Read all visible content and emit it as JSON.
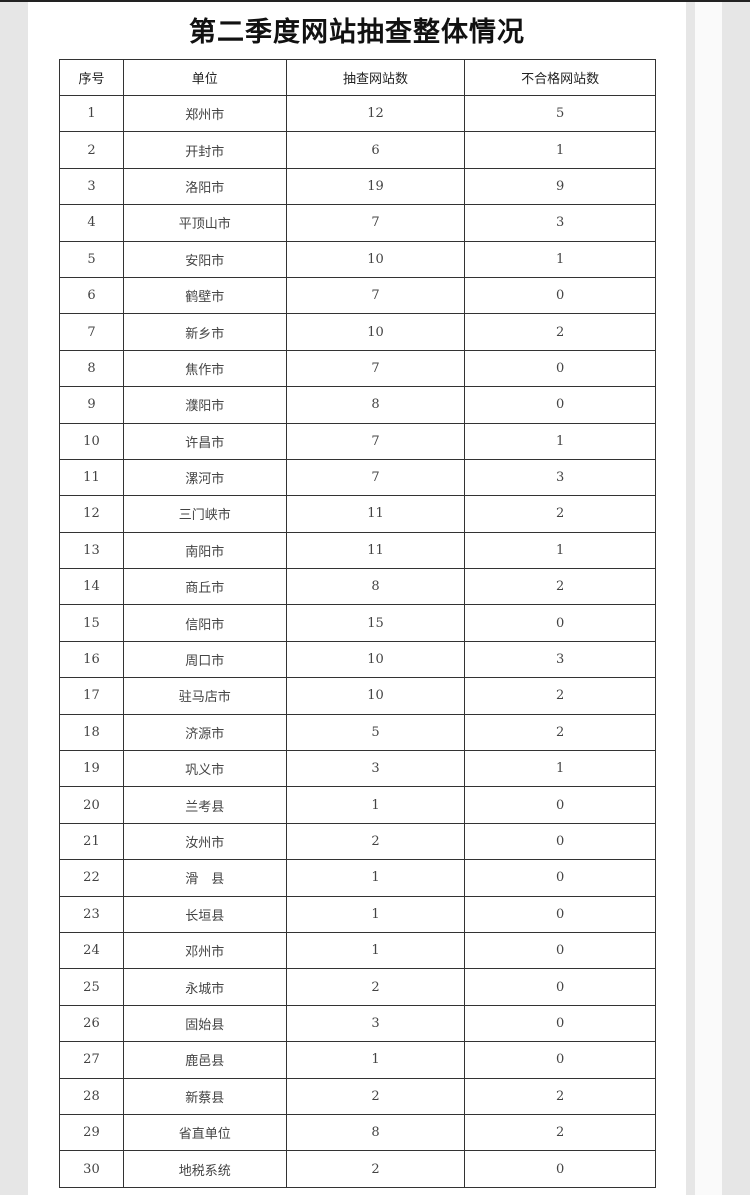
{
  "title": "第二季度网站抽查整体情况",
  "columns": [
    "序号",
    "单位",
    "抽查网站数",
    "不合格网站数"
  ],
  "rows": [
    [
      "1",
      "郑州市",
      "12",
      "5"
    ],
    [
      "2",
      "开封市",
      "6",
      "1"
    ],
    [
      "3",
      "洛阳市",
      "19",
      "9"
    ],
    [
      "4",
      "平顶山市",
      "7",
      "3"
    ],
    [
      "5",
      "安阳市",
      "10",
      "1"
    ],
    [
      "6",
      "鹤壁市",
      "7",
      "0"
    ],
    [
      "7",
      "新乡市",
      "10",
      "2"
    ],
    [
      "8",
      "焦作市",
      "7",
      "0"
    ],
    [
      "9",
      "濮阳市",
      "8",
      "0"
    ],
    [
      "10",
      "许昌市",
      "7",
      "1"
    ],
    [
      "11",
      "漯河市",
      "7",
      "3"
    ],
    [
      "12",
      "三门峡市",
      "11",
      "2"
    ],
    [
      "13",
      "南阳市",
      "11",
      "1"
    ],
    [
      "14",
      "商丘市",
      "8",
      "2"
    ],
    [
      "15",
      "信阳市",
      "15",
      "0"
    ],
    [
      "16",
      "周口市",
      "10",
      "3"
    ],
    [
      "17",
      "驻马店市",
      "10",
      "2"
    ],
    [
      "18",
      "济源市",
      "5",
      "2"
    ],
    [
      "19",
      "巩义市",
      "3",
      "1"
    ],
    [
      "20",
      "兰考县",
      "1",
      "0"
    ],
    [
      "21",
      "汝州市",
      "2",
      "0"
    ],
    [
      "22",
      "滑　县",
      "1",
      "0"
    ],
    [
      "23",
      "长垣县",
      "1",
      "0"
    ],
    [
      "24",
      "邓州市",
      "1",
      "0"
    ],
    [
      "25",
      "永城市",
      "2",
      "0"
    ],
    [
      "26",
      "固始县",
      "3",
      "0"
    ],
    [
      "27",
      "鹿邑县",
      "1",
      "0"
    ],
    [
      "28",
      "新蔡县",
      "2",
      "2"
    ],
    [
      "29",
      "省直单位",
      "8",
      "2"
    ],
    [
      "30",
      "地税系统",
      "2",
      "0"
    ]
  ]
}
